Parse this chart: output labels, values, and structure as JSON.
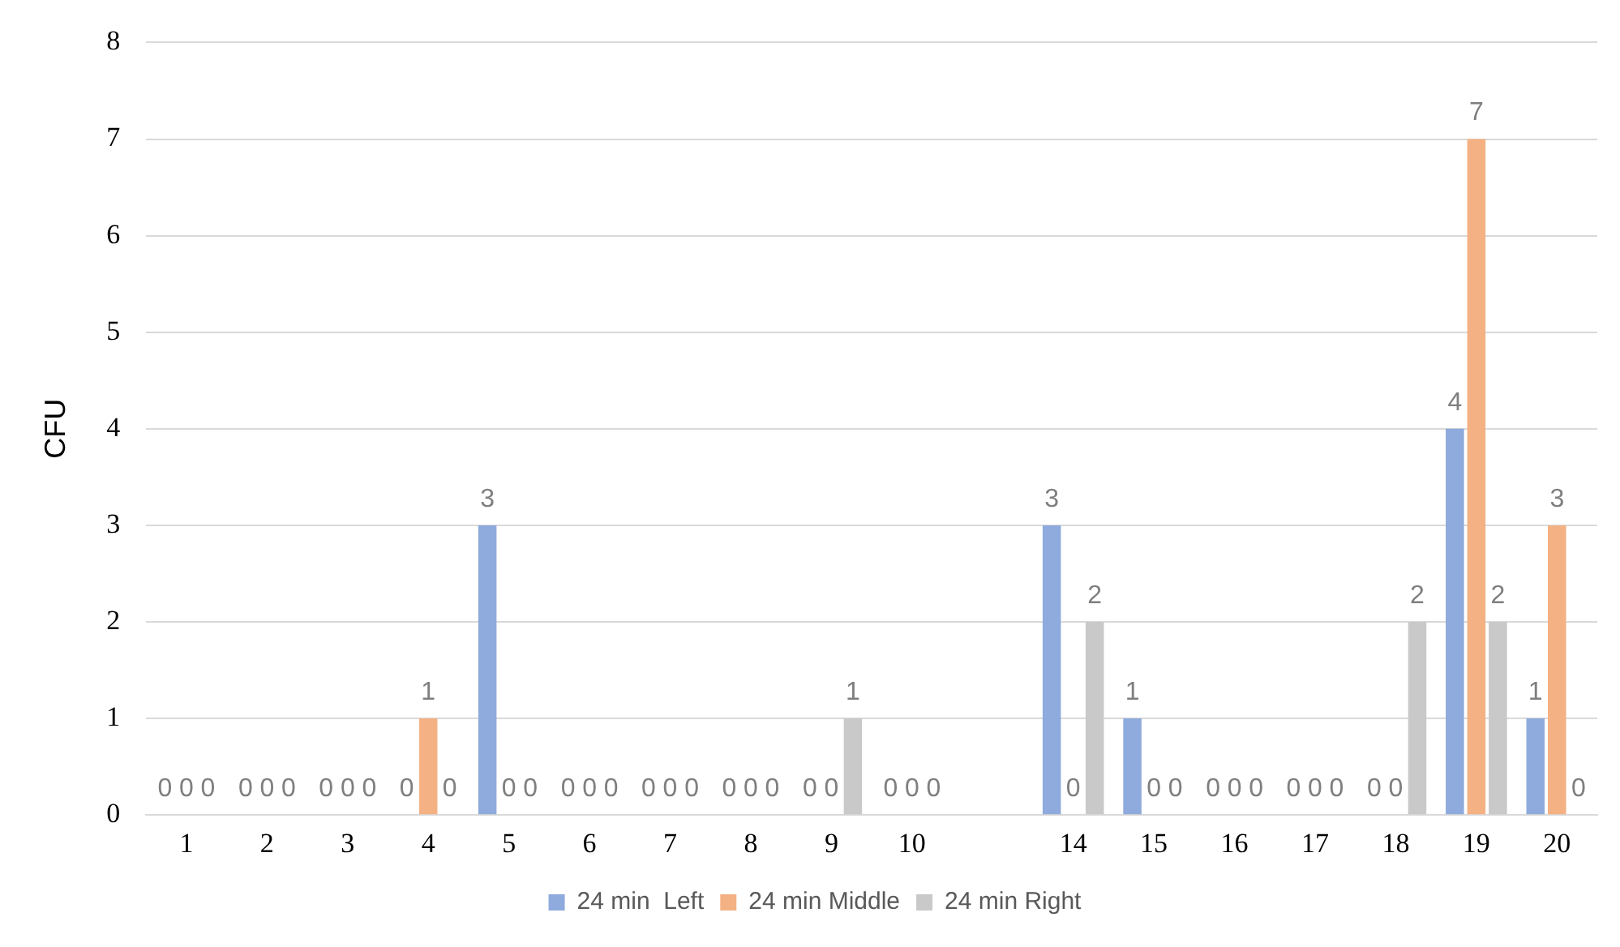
{
  "chart_data": {
    "type": "bar",
    "ylabel": "CFU",
    "categories": [
      "1",
      "2",
      "3",
      "4",
      "5",
      "6",
      "7",
      "8",
      "9",
      "10",
      null,
      "14",
      "15",
      "16",
      "17",
      "18",
      "19",
      "20"
    ],
    "series": [
      {
        "name": "24 min  Left",
        "color": "#8faadc",
        "values": [
          0,
          0,
          0,
          0,
          3,
          0,
          0,
          0,
          0,
          0,
          null,
          3,
          1,
          0,
          0,
          0,
          4,
          1
        ]
      },
      {
        "name": "24 min Middle",
        "color": "#f4b183",
        "values": [
          0,
          0,
          0,
          1,
          0,
          0,
          0,
          0,
          0,
          0,
          null,
          0,
          0,
          0,
          0,
          0,
          7,
          3
        ]
      },
      {
        "name": "24 min Right",
        "color": "#c9c9c9",
        "values": [
          0,
          0,
          0,
          0,
          0,
          0,
          0,
          0,
          1,
          0,
          null,
          2,
          0,
          0,
          0,
          2,
          2,
          0
        ]
      }
    ],
    "ylim": [
      0,
      8
    ],
    "yticks": [
      0,
      1,
      2,
      3,
      4,
      5,
      6,
      7,
      8
    ],
    "grid": "y",
    "legend": "bottom",
    "data_labels": true
  }
}
